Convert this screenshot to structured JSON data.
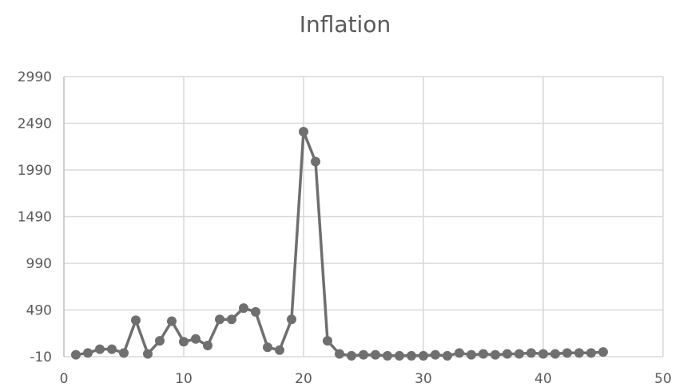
{
  "chart_data": {
    "type": "scatter",
    "title": "Inflation",
    "xlabel": "",
    "ylabel": "",
    "xlim": [
      0,
      50
    ],
    "ylim": [
      -10,
      2990
    ],
    "x_ticks": [
      0,
      10,
      20,
      30,
      40,
      50
    ],
    "y_ticks": [
      -10,
      490,
      990,
      1490,
      1990,
      2490,
      2990
    ],
    "grid": true,
    "legend": "none",
    "color": "#6f6f6f",
    "series": [
      {
        "x": [
          1,
          2,
          3,
          4,
          5,
          6,
          7,
          8,
          9,
          10,
          11,
          12,
          13,
          14,
          15,
          16,
          17,
          18,
          19,
          20,
          21,
          22,
          23,
          24,
          25,
          26,
          27,
          28,
          29,
          30,
          31,
          32,
          33,
          34,
          35,
          36,
          37,
          38,
          39,
          40,
          41,
          42,
          43,
          44,
          45
        ],
        "values": [
          10,
          30,
          70,
          70,
          30,
          380,
          20,
          160,
          370,
          150,
          180,
          110,
          390,
          390,
          510,
          470,
          90,
          60,
          390,
          2400,
          2080,
          160,
          20,
          0,
          10,
          10,
          0,
          0,
          0,
          0,
          10,
          0,
          30,
          10,
          20,
          10,
          20,
          20,
          30,
          20,
          20,
          30,
          30,
          30,
          40
        ]
      }
    ]
  }
}
